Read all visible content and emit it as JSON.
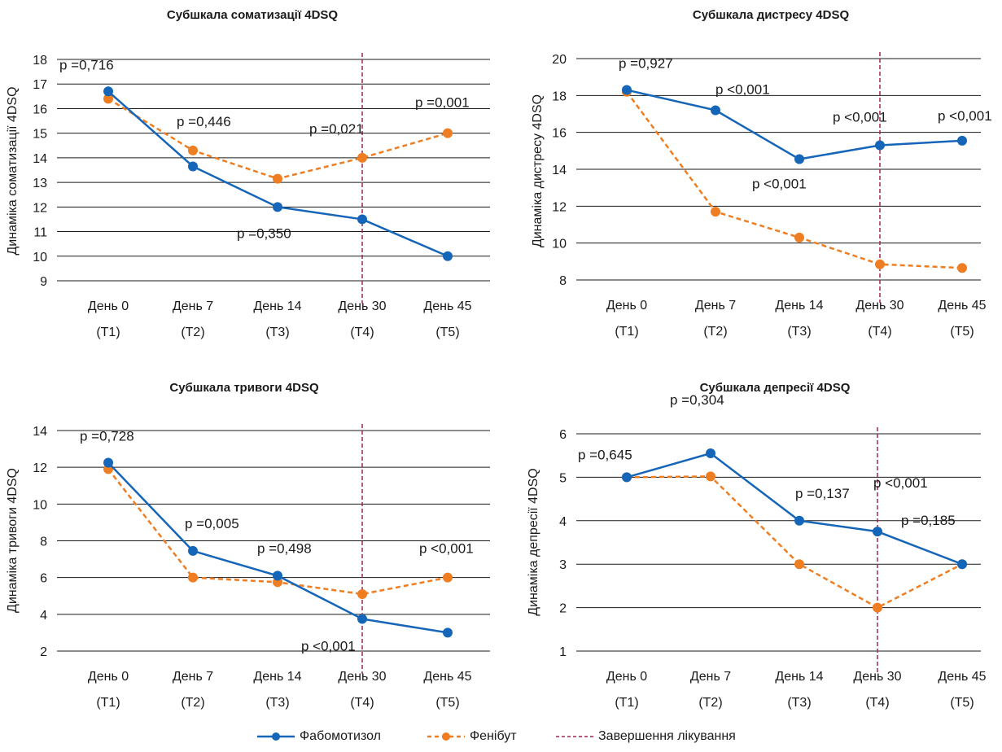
{
  "colors": {
    "fabomotizol": "#1565b8",
    "phenibut": "#ef7d22",
    "treatment_end": "#a0264e",
    "grid": "#1a1a1a"
  },
  "x_tick_labels": {
    "day": [
      "День 0",
      "День 7",
      "День 14",
      "День 30",
      "День 45"
    ],
    "period": [
      "(T1)",
      "(T2)",
      "(T3)",
      "(T4)",
      "(T5)"
    ]
  },
  "legend": {
    "fabomotizol": "Фабомотизол",
    "phenibut": "Фенібут",
    "treatment_end": "Завершення лікування"
  },
  "chart_data": [
    {
      "type": "line",
      "title": "Субшкала соматизації 4DSQ",
      "ylabel": "Динаміка соматизації 4DSQ",
      "ylim": [
        9,
        18
      ],
      "yticks": [
        9,
        10,
        11,
        12,
        13,
        14,
        15,
        16,
        17,
        18
      ],
      "categories": [
        "День 0 (T1)",
        "День 7 (T2)",
        "День 14 (T3)",
        "День 30 (T4)",
        "День 45 (T5)"
      ],
      "series": [
        {
          "name": "Фабомотизол",
          "values": [
            16.7,
            13.65,
            12.0,
            11.5,
            10.0
          ]
        },
        {
          "name": "Фенібут",
          "values": [
            16.4,
            14.3,
            13.15,
            14.0,
            15.0
          ]
        }
      ],
      "annotations": [
        "p =0,716",
        "p =0,446",
        "p =0,350",
        "p =0,021",
        "p =0,001"
      ],
      "treatment_end_at": "День 30 (T4)",
      "grid": true
    },
    {
      "type": "line",
      "title": "Субшкала дистресу 4DSQ",
      "ylabel": "Динаміка дистресу 4DSQ",
      "ylim": [
        8,
        20
      ],
      "yticks": [
        8,
        10,
        12,
        14,
        16,
        18,
        20
      ],
      "categories": [
        "День 0 (T1)",
        "День 7 (T2)",
        "День 14 (T3)",
        "День 30 (T4)",
        "День 45 (T5)"
      ],
      "series": [
        {
          "name": "Фабомотизол",
          "values": [
            18.3,
            17.2,
            14.55,
            15.3,
            15.55
          ]
        },
        {
          "name": "Фенібут",
          "values": [
            18.2,
            11.7,
            10.3,
            8.85,
            8.65
          ]
        }
      ],
      "annotations": [
        "p =0,927",
        "p <0,001",
        "p <0,001",
        "p <0,001",
        "p <0,001"
      ],
      "treatment_end_at": "День 30 (T4)",
      "grid": true
    },
    {
      "type": "line",
      "title": "Субшкала тривоги 4DSQ",
      "ylabel": "Динаміка тривоги 4DSQ",
      "ylim": [
        2,
        14
      ],
      "yticks": [
        2,
        4,
        6,
        8,
        10,
        12,
        14
      ],
      "categories": [
        "День 0 (T1)",
        "День 7 (T2)",
        "День 14 (T3)",
        "День 30 (T4)",
        "День 45 (T5)"
      ],
      "series": [
        {
          "name": "Фабомотизол",
          "values": [
            12.25,
            7.45,
            6.1,
            3.75,
            3.0
          ]
        },
        {
          "name": "Фенібут",
          "values": [
            11.9,
            6.0,
            5.75,
            5.1,
            6.0
          ]
        }
      ],
      "annotations": [
        "p =0,728",
        "p =0,005",
        "p =0,498",
        "p <0,001",
        "p <0,001"
      ],
      "treatment_end_at": "День 30 (T4)",
      "grid": true
    },
    {
      "type": "line",
      "title": "Субшкала депресії 4DSQ",
      "ylabel": "Динаміка депресії 4DSQ",
      "ylim": [
        1,
        6
      ],
      "yticks": [
        1,
        2,
        3,
        4,
        5,
        6
      ],
      "categories": [
        "День 0 (T1)",
        "День 7 (T2)",
        "День 14 (T3)",
        "День 30 (T4)",
        "День 45 (T5)"
      ],
      "series": [
        {
          "name": "Фабомотизол",
          "values": [
            5.0,
            5.55,
            4.0,
            3.75,
            3.0
          ]
        },
        {
          "name": "Фенібут",
          "values": [
            5.0,
            5.02,
            3.0,
            2.0,
            3.0
          ]
        }
      ],
      "annotations": [
        "p =0,645",
        "p =0,304",
        "p =0,137",
        "p <0,001",
        "p =0,185"
      ],
      "treatment_end_at": "День 30 (T4)",
      "grid": true
    }
  ]
}
